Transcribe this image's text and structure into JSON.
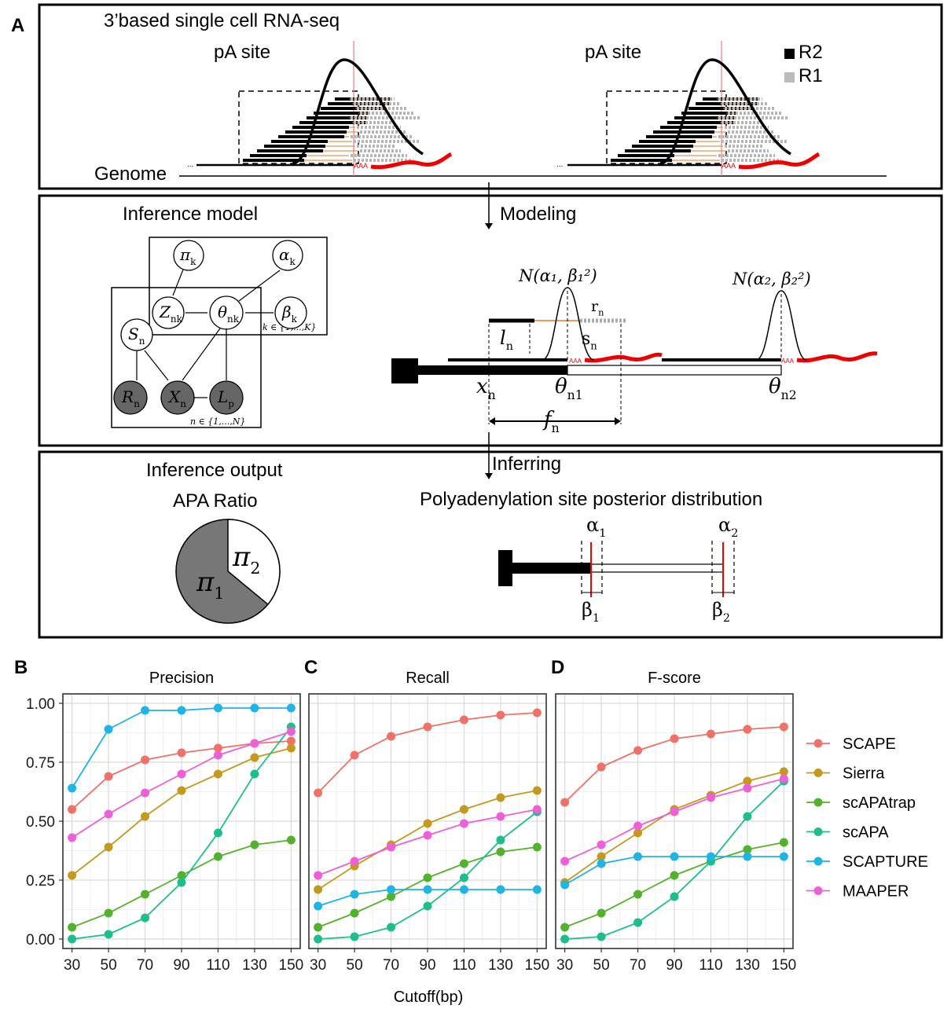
{
  "panel_a": {
    "letter": "A",
    "sec1": {
      "title": "3’based single cell RNA-seq",
      "pa_site_left": "pA site",
      "pa_site_right": "pA site",
      "genome": "Genome",
      "legend_r2": "R2",
      "legend_r1": "R1",
      "aaa": "AAA",
      "dots": "..."
    },
    "sec2": {
      "title": "Inference model",
      "modeling": "Modeling",
      "nodes": {
        "pi": "π",
        "pi_sub": "k",
        "alpha": "α",
        "alpha_sub": "k",
        "z": "Z",
        "z_sub": "nk",
        "theta": "θ",
        "theta_sub": "nk",
        "beta": "β",
        "beta_sub": "k",
        "s": "S",
        "s_sub": "n",
        "r": "R",
        "r_sub": "n",
        "x": "X",
        "x_sub": "n",
        "l": "L",
        "l_sub": "p"
      },
      "plate_k": "k ∈ {1,...,K}",
      "plate_n": "n ∈ {1,...,N}",
      "dist1": "N(α₁, β₁²)",
      "dist2": "N(α₂, β₂²)",
      "r_n": "r",
      "r_n_sub": "n",
      "l_n": "l",
      "l_n_sub": "n",
      "s_n": "s",
      "s_n_sub": "n",
      "x_n": "x",
      "x_n_sub": "n",
      "theta_n1": "θ",
      "theta_n1_sub": "n1",
      "theta_n2": "θ",
      "theta_n2_sub": "n2",
      "f_n": "f",
      "f_n_sub": "n"
    },
    "sec3": {
      "title": "Inference output",
      "subtitle": "APA Ratio",
      "inferring": "Inferring",
      "posterior_title": "Polyadenylation site posterior distribution",
      "pi1": "π",
      "pi1_sub": "1",
      "pi2": "π",
      "pi2_sub": "2",
      "a1": "α",
      "a1_sub": "1",
      "a2": "α",
      "a2_sub": "2",
      "b1": "β",
      "b1_sub": "1",
      "b2": "β",
      "b2_sub": "2",
      "pie_pi2_fraction": 0.36
    }
  },
  "chart_data": [
    {
      "letter": "B",
      "type": "line",
      "title": "Precision",
      "x": [
        30,
        50,
        70,
        90,
        110,
        130,
        150
      ],
      "xlim": [
        25,
        155
      ],
      "ylim": [
        -0.04,
        1.04
      ],
      "yticks": [
        "0.00",
        "0.25",
        "0.50",
        "0.75",
        "1.00"
      ],
      "grid": true,
      "series": [
        {
          "name": "SCAPE",
          "values": [
            0.55,
            0.69,
            0.76,
            0.79,
            0.81,
            0.83,
            0.84
          ]
        },
        {
          "name": "Sierra",
          "values": [
            0.27,
            0.39,
            0.52,
            0.63,
            0.7,
            0.77,
            0.81
          ]
        },
        {
          "name": "scAPAtrap",
          "values": [
            0.05,
            0.11,
            0.19,
            0.27,
            0.35,
            0.4,
            0.42
          ]
        },
        {
          "name": "scAPA",
          "values": [
            0.0,
            0.02,
            0.09,
            0.24,
            0.45,
            0.7,
            0.9
          ]
        },
        {
          "name": "SCAPTURE",
          "values": [
            0.64,
            0.89,
            0.97,
            0.97,
            0.98,
            0.98,
            0.98
          ]
        },
        {
          "name": "MAAPER",
          "values": [
            0.43,
            0.53,
            0.62,
            0.7,
            0.78,
            0.83,
            0.88
          ]
        }
      ]
    },
    {
      "letter": "C",
      "type": "line",
      "title": "Recall",
      "x": [
        30,
        50,
        70,
        90,
        110,
        130,
        150
      ],
      "xlim": [
        25,
        155
      ],
      "ylim": [
        -0.04,
        1.04
      ],
      "grid": true,
      "series": [
        {
          "name": "SCAPE",
          "values": [
            0.62,
            0.78,
            0.86,
            0.9,
            0.93,
            0.95,
            0.96
          ]
        },
        {
          "name": "Sierra",
          "values": [
            0.21,
            0.31,
            0.4,
            0.49,
            0.55,
            0.6,
            0.63
          ]
        },
        {
          "name": "scAPAtrap",
          "values": [
            0.05,
            0.11,
            0.18,
            0.26,
            0.32,
            0.37,
            0.39
          ]
        },
        {
          "name": "scAPA",
          "values": [
            0.0,
            0.01,
            0.05,
            0.14,
            0.26,
            0.42,
            0.54
          ]
        },
        {
          "name": "SCAPTURE",
          "values": [
            0.14,
            0.19,
            0.21,
            0.21,
            0.21,
            0.21,
            0.21
          ]
        },
        {
          "name": "MAAPER",
          "values": [
            0.27,
            0.33,
            0.39,
            0.44,
            0.49,
            0.52,
            0.55
          ]
        }
      ]
    },
    {
      "letter": "D",
      "type": "line",
      "title": "F-score",
      "x": [
        30,
        50,
        70,
        90,
        110,
        130,
        150
      ],
      "xlim": [
        25,
        155
      ],
      "ylim": [
        -0.04,
        1.04
      ],
      "grid": true,
      "series": [
        {
          "name": "SCAPE",
          "values": [
            0.58,
            0.73,
            0.8,
            0.85,
            0.87,
            0.89,
            0.9
          ]
        },
        {
          "name": "Sierra",
          "values": [
            0.24,
            0.35,
            0.45,
            0.55,
            0.61,
            0.67,
            0.71
          ]
        },
        {
          "name": "scAPAtrap",
          "values": [
            0.05,
            0.11,
            0.19,
            0.27,
            0.33,
            0.38,
            0.41
          ]
        },
        {
          "name": "scAPA",
          "values": [
            0.0,
            0.01,
            0.07,
            0.18,
            0.33,
            0.52,
            0.67
          ]
        },
        {
          "name": "SCAPTURE",
          "values": [
            0.23,
            0.32,
            0.35,
            0.35,
            0.35,
            0.35,
            0.35
          ]
        },
        {
          "name": "MAAPER",
          "values": [
            0.33,
            0.4,
            0.48,
            0.54,
            0.6,
            0.64,
            0.68
          ]
        }
      ]
    }
  ],
  "shared": {
    "xlabel": "Cutoff(bp)",
    "legend_placement": "right",
    "legend": [
      "SCAPE",
      "Sierra",
      "scAPAtrap",
      "scAPA",
      "SCAPTURE",
      "MAAPER"
    ],
    "colors": {
      "SCAPE": "#F07167",
      "Sierra": "#C49A1E",
      "scAPAtrap": "#53B22C",
      "scAPA": "#1EBE8C",
      "SCAPTURE": "#1EB4E6",
      "MAAPER": "#EE5FD8"
    }
  }
}
